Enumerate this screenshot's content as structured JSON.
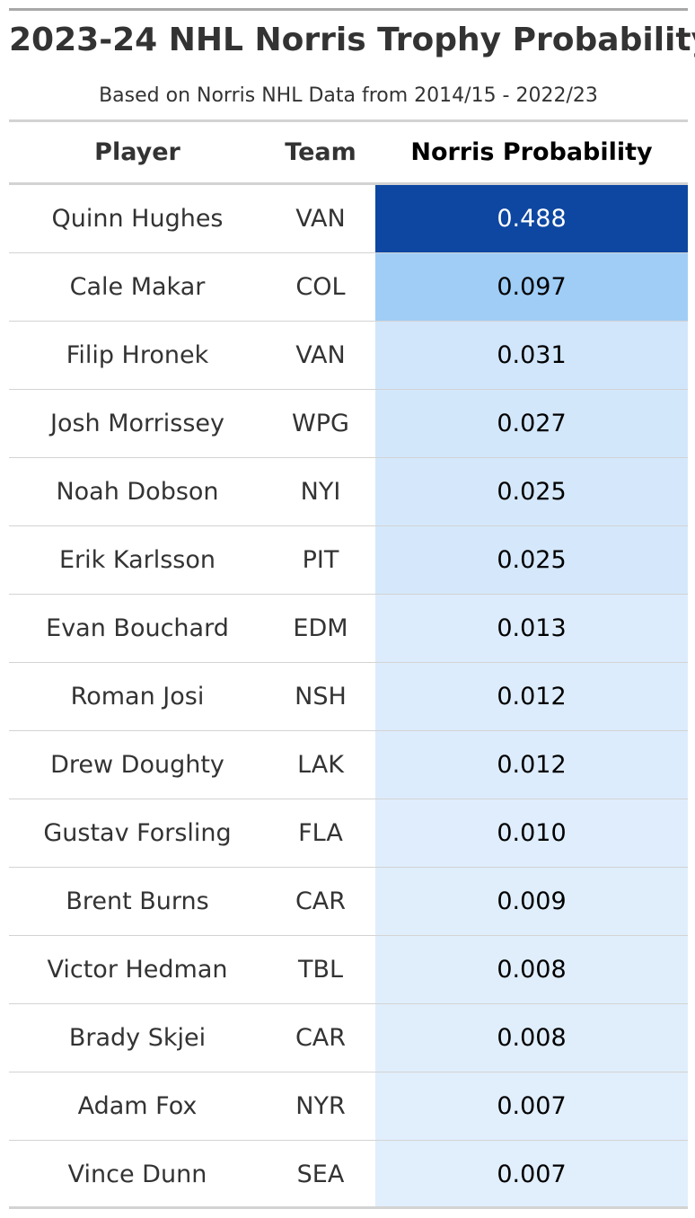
{
  "chart_data": {
    "type": "table",
    "title": "2023-24 NHL Norris Trophy Probability",
    "subtitle": "Based on Norris NHL Data from 2014/15 - 2022/23",
    "columns": [
      "Player",
      "Team",
      "Norris Probability"
    ],
    "rows": [
      {
        "player": "Quinn Hughes",
        "team": "VAN",
        "prob": "0.488",
        "color": "#0d47a1",
        "text_color": "#ffffff"
      },
      {
        "player": "Cale Makar",
        "team": "COL",
        "prob": "0.097",
        "color": "#9fcdf6",
        "text_color": "#000000"
      },
      {
        "player": "Filip Hronek",
        "team": "VAN",
        "prob": "0.031",
        "color": "#d1e6fb",
        "text_color": "#000000"
      },
      {
        "player": "Josh Morrissey",
        "team": "WPG",
        "prob": "0.027",
        "color": "#d3e7fb",
        "text_color": "#000000"
      },
      {
        "player": "Noah Dobson",
        "team": "NYI",
        "prob": "0.025",
        "color": "#d5e8fb",
        "text_color": "#000000"
      },
      {
        "player": "Erik Karlsson",
        "team": "PIT",
        "prob": "0.025",
        "color": "#d5e8fb",
        "text_color": "#000000"
      },
      {
        "player": "Evan Bouchard",
        "team": "EDM",
        "prob": "0.013",
        "color": "#dcecfc",
        "text_color": "#000000"
      },
      {
        "player": "Roman Josi",
        "team": "NSH",
        "prob": "0.012",
        "color": "#ddecfc",
        "text_color": "#000000"
      },
      {
        "player": "Drew Doughty",
        "team": "LAK",
        "prob": "0.012",
        "color": "#ddecfc",
        "text_color": "#000000"
      },
      {
        "player": "Gustav Forsling",
        "team": "FLA",
        "prob": "0.010",
        "color": "#dfedfc",
        "text_color": "#000000"
      },
      {
        "player": "Brent Burns",
        "team": "CAR",
        "prob": "0.009",
        "color": "#e0eefc",
        "text_color": "#000000"
      },
      {
        "player": "Victor Hedman",
        "team": "TBL",
        "prob": "0.008",
        "color": "#e0eefc",
        "text_color": "#000000"
      },
      {
        "player": "Brady Skjei",
        "team": "CAR",
        "prob": "0.008",
        "color": "#e0eefc",
        "text_color": "#000000"
      },
      {
        "player": "Adam Fox",
        "team": "NYR",
        "prob": "0.007",
        "color": "#e1eefc",
        "text_color": "#000000"
      },
      {
        "player": "Vince Dunn",
        "team": "SEA",
        "prob": "0.007",
        "color": "#e1eefc",
        "text_color": "#000000"
      }
    ]
  }
}
